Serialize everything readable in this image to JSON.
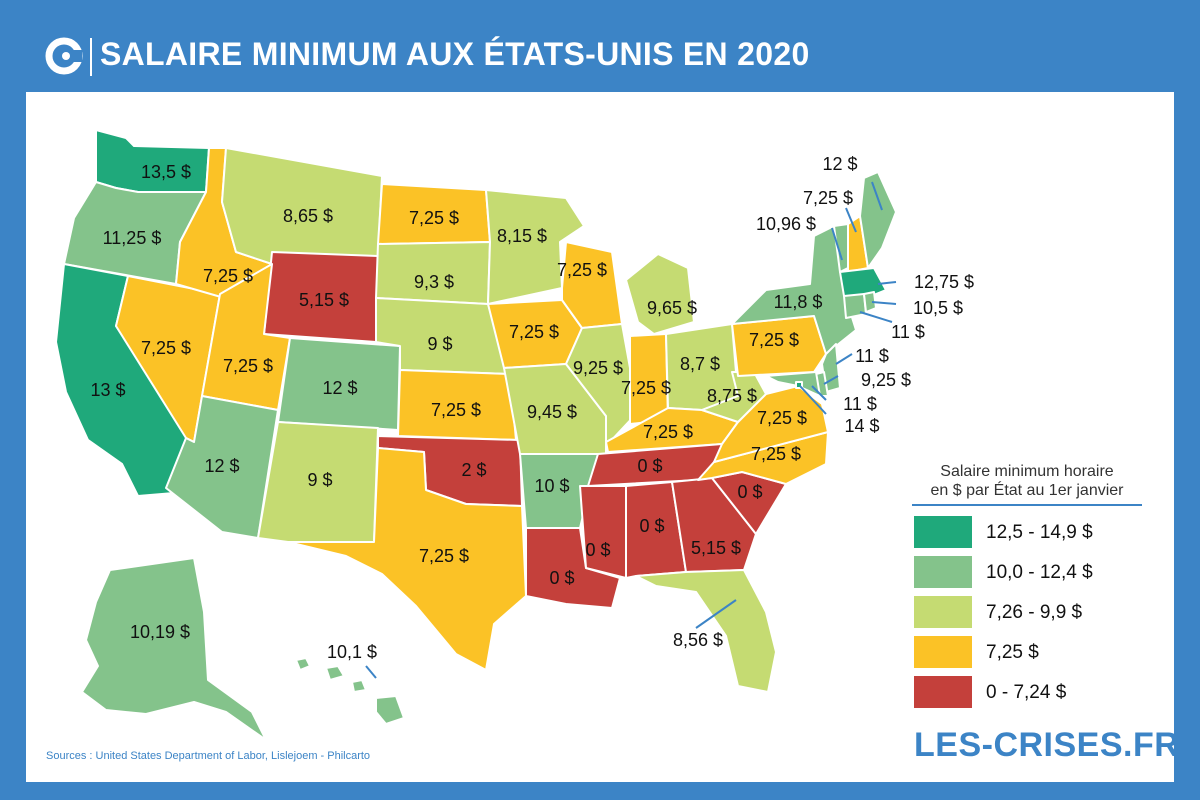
{
  "header": {
    "title": "SALAIRE MINIMUM AUX ÉTATS-UNIS EN 2020",
    "logo_icon": "les-crises-c-logo-icon"
  },
  "colors": {
    "background": "#3c84c6",
    "c12_5_14_9": "#1fa97b",
    "c10_12_4": "#84c38b",
    "c7_26_9_9": "#c5db72",
    "c7_25": "#fbc226",
    "c0_7_24": "#c4403b"
  },
  "states": {
    "WA": "13,5 $",
    "OR": "11,25 $",
    "CA": "13 $",
    "NV": "7,25 $",
    "ID": "7,25 $",
    "MT": "8,65 $",
    "WY": "5,15 $",
    "UT": "7,25 $",
    "AZ": "12 $",
    "CO": "12 $",
    "NM": "9 $",
    "ND": "7,25 $",
    "SD": "9,3 $",
    "NE": "9 $",
    "KS": "7,25 $",
    "OK": "2 $",
    "TX": "7,25 $",
    "MN": "8,15 $",
    "IA": "7,25 $",
    "MO": "9,45 $",
    "AR": "10 $",
    "LA": "0 $",
    "WI": "7,25 $",
    "IL": "9,25 $",
    "MS": "0 $",
    "MI": "9,65 $",
    "IN": "7,25 $",
    "OH": "8,7 $",
    "KY": "7,25 $",
    "TN": "0 $",
    "AL": "0 $",
    "GA": "5,15 $",
    "FL": "8,56 $",
    "SC": "0 $",
    "NC": "7,25 $",
    "VA": "7,25 $",
    "WV": "8,75 $",
    "PA": "7,25 $",
    "NY": "11,8 $",
    "VT": "10,96 $",
    "NH": "7,25 $",
    "ME": "12 $",
    "MA": "12,75 $",
    "RI": "10,5 $",
    "CT": "11 $",
    "NJ": "11 $",
    "DE": "9,25 $",
    "MD": "11 $",
    "DC": "14 $",
    "AK": "10,19 $",
    "HI": "10,1 $"
  },
  "legend": {
    "title_line1": "Salaire minimum horaire",
    "title_line2": "en $ par État au 1er janvier",
    "items": [
      {
        "label": "12,5 - 14,9 $"
      },
      {
        "label": "10,0 - 12,4 $"
      },
      {
        "label": "7,26 - 9,9 $"
      },
      {
        "label": "7,25 $"
      },
      {
        "label": "0 - 7,24 $"
      }
    ]
  },
  "footer": {
    "sources": "Sources : United States Department of Labor, Lislejoem - Philcarto",
    "brand": "LES-CRISES.FR"
  }
}
